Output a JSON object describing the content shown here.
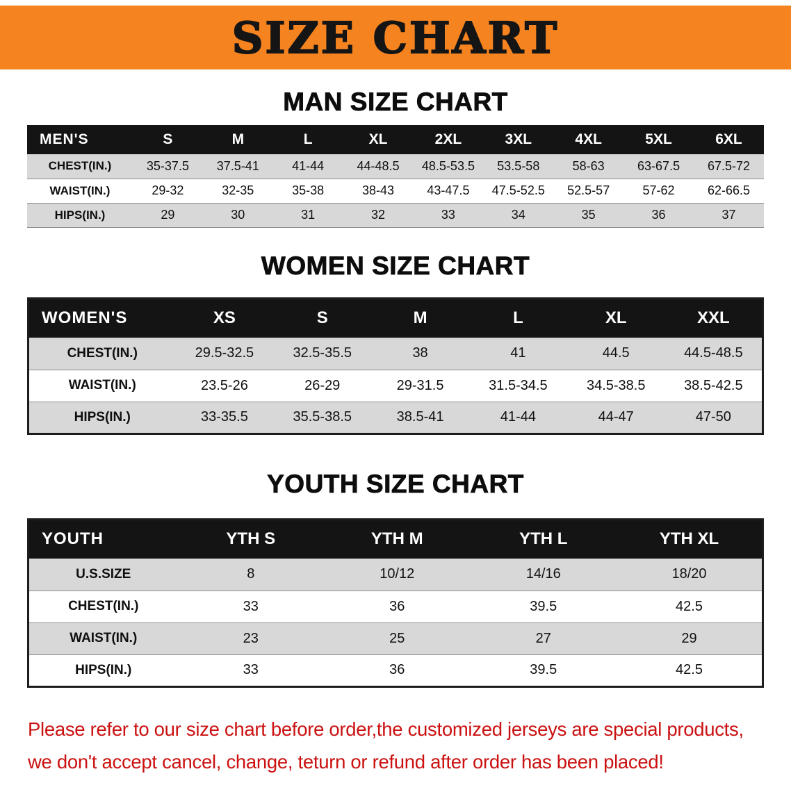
{
  "banner": {
    "title": "SIZE CHART",
    "bg_color": "#f5831f",
    "text_color": "#151515"
  },
  "colors": {
    "table_header_black": "#141414",
    "row_shade_gray": "#d8d8d8",
    "disclaimer_red": "#cb1111"
  },
  "chart_data": [
    {
      "type": "table",
      "title": "MAN SIZE CHART",
      "group_label": "MEN'S",
      "columns": [
        "S",
        "M",
        "L",
        "XL",
        "2XL",
        "3XL",
        "4XL",
        "5XL",
        "6XL"
      ],
      "rows": [
        {
          "label": "CHEST(IN.)",
          "values": [
            "35-37.5",
            "37.5-41",
            "41-44",
            "44-48.5",
            "48.5-53.5",
            "53.5-58",
            "58-63",
            "63-67.5",
            "67.5-72"
          ]
        },
        {
          "label": "WAIST(IN.)",
          "values": [
            "29-32",
            "32-35",
            "35-38",
            "38-43",
            "43-47.5",
            "47.5-52.5",
            "52.5-57",
            "57-62",
            "62-66.5"
          ]
        },
        {
          "label": "HIPS(IN.)",
          "values": [
            "29",
            "30",
            "31",
            "32",
            "33",
            "34",
            "35",
            "36",
            "37"
          ]
        }
      ]
    },
    {
      "type": "table",
      "title": "WOMEN SIZE CHART",
      "group_label": "WOMEN'S",
      "columns": [
        "XS",
        "S",
        "M",
        "L",
        "XL",
        "XXL"
      ],
      "rows": [
        {
          "label": "CHEST(IN.)",
          "values": [
            "29.5-32.5",
            "32.5-35.5",
            "38",
            "41",
            "44.5",
            "44.5-48.5"
          ]
        },
        {
          "label": "WAIST(IN.)",
          "values": [
            "23.5-26",
            "26-29",
            "29-31.5",
            "31.5-34.5",
            "34.5-38.5",
            "38.5-42.5"
          ]
        },
        {
          "label": "HIPS(IN.)",
          "values": [
            "33-35.5",
            "35.5-38.5",
            "38.5-41",
            "41-44",
            "44-47",
            "47-50"
          ]
        }
      ]
    },
    {
      "type": "table",
      "title": "YOUTH SIZE CHART",
      "group_label": "YOUTH",
      "columns": [
        "YTH S",
        "YTH M",
        "YTH L",
        "YTH XL"
      ],
      "rows": [
        {
          "label": "U.S.SIZE",
          "values": [
            "8",
            "10/12",
            "14/16",
            "18/20"
          ]
        },
        {
          "label": "CHEST(IN.)",
          "values": [
            "33",
            "36",
            "39.5",
            "42.5"
          ]
        },
        {
          "label": "WAIST(IN.)",
          "values": [
            "23",
            "25",
            "27",
            "29"
          ]
        },
        {
          "label": "HIPS(IN.)",
          "values": [
            "33",
            "36",
            "39.5",
            "42.5"
          ]
        }
      ]
    }
  ],
  "disclaimer": {
    "line1": "Please refer to our size chart before order,the customized jerseys are special products,",
    "line2": "we don't accept cancel, change, teturn or refund after order has been placed!"
  }
}
